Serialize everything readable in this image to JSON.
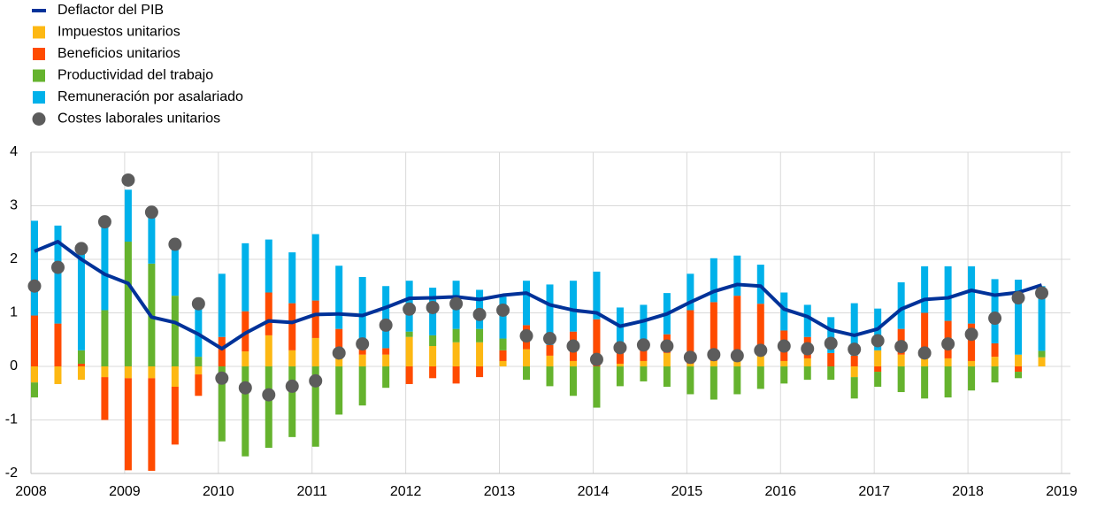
{
  "chart_data": {
    "type": "bar",
    "x": [
      2008,
      2008.25,
      2008.5,
      2008.75,
      2009,
      2009.25,
      2009.5,
      2009.75,
      2010,
      2010.25,
      2010.5,
      2010.75,
      2011,
      2011.25,
      2011.5,
      2011.75,
      2012,
      2012.25,
      2012.5,
      2012.75,
      2013,
      2013.25,
      2013.5,
      2013.75,
      2014,
      2014.25,
      2014.5,
      2014.75,
      2015,
      2015.25,
      2015.5,
      2015.75,
      2016,
      2016.25,
      2016.5,
      2016.75,
      2017,
      2017.25,
      2017.5,
      2017.75,
      2018,
      2018.25,
      2018.5,
      2018.75
    ],
    "series": [
      {
        "name": "Deflactor del PIB",
        "type": "line",
        "color": "#003299",
        "values": [
          2.15,
          2.33,
          2.0,
          1.72,
          1.55,
          0.92,
          0.82,
          0.6,
          0.33,
          0.62,
          0.85,
          0.82,
          0.97,
          0.98,
          0.95,
          1.1,
          1.27,
          1.28,
          1.3,
          1.25,
          1.33,
          1.37,
          1.15,
          1.05,
          1.0,
          0.75,
          0.85,
          0.98,
          1.2,
          1.4,
          1.53,
          1.5,
          1.07,
          0.93,
          0.68,
          0.58,
          0.7,
          1.07,
          1.25,
          1.28,
          1.42,
          1.33,
          1.38,
          1.52
        ]
      },
      {
        "name": "Impuestos unitarios",
        "type": "bar",
        "color": "#fdb813",
        "values": [
          -0.3,
          -0.33,
          -0.25,
          -0.2,
          -0.22,
          -0.22,
          -0.38,
          -0.15,
          0,
          0.28,
          0.58,
          0.3,
          0.53,
          0.15,
          0.22,
          0.22,
          0.55,
          0.38,
          0.45,
          0.45,
          0.1,
          0.32,
          0.2,
          0.1,
          0,
          0.05,
          0.1,
          0.25,
          0.05,
          0.1,
          0.12,
          0.2,
          0.1,
          0.15,
          0,
          -0.2,
          0.3,
          0.22,
          0.15,
          0.15,
          0.1,
          0.18,
          0.22,
          0.17
        ]
      },
      {
        "name": "Beneficios unitarios",
        "type": "bar",
        "color": "#ff4b00",
        "values": [
          0.95,
          0.8,
          0.05,
          -0.8,
          -1.72,
          -1.73,
          -1.08,
          -0.4,
          0.55,
          0.75,
          0.8,
          0.88,
          0.7,
          0.55,
          0.1,
          0.12,
          -0.33,
          -0.22,
          -0.32,
          -0.2,
          0.2,
          0.45,
          0.2,
          0.55,
          0.88,
          0.23,
          0.2,
          0.35,
          1.0,
          1.1,
          1.2,
          0.97,
          0.57,
          0.4,
          0.25,
          0.2,
          -0.1,
          0.48,
          0.85,
          0.7,
          0.7,
          0.25,
          -0.1,
          0
        ]
      },
      {
        "name": "Productividad del trabajo",
        "type": "bar",
        "color": "#65b32e",
        "values": [
          -0.28,
          0,
          0.25,
          1.05,
          2.33,
          1.92,
          1.32,
          0.18,
          -1.4,
          -1.68,
          -1.52,
          -1.32,
          -1.5,
          -0.9,
          -0.73,
          -0.4,
          0.1,
          0.2,
          0.25,
          0.25,
          0.22,
          -0.25,
          -0.37,
          -0.55,
          -0.77,
          -0.37,
          -0.28,
          -0.38,
          -0.52,
          -0.62,
          -0.52,
          -0.42,
          -0.32,
          -0.25,
          -0.25,
          -0.4,
          -0.28,
          -0.48,
          -0.6,
          -0.58,
          -0.45,
          -0.3,
          -0.12,
          0.12
        ]
      },
      {
        "name": "Remuneración por asalariado",
        "type": "bar",
        "color": "#00b1ea",
        "values": [
          1.77,
          1.83,
          1.8,
          1.55,
          0.97,
          0.93,
          0.93,
          0.97,
          1.18,
          1.27,
          0.99,
          0.95,
          1.24,
          1.18,
          1.35,
          1.16,
          0.95,
          0.89,
          0.9,
          0.73,
          0.78,
          0.83,
          1.13,
          0.95,
          0.89,
          0.82,
          0.85,
          0.77,
          0.68,
          0.82,
          0.75,
          0.73,
          0.71,
          0.6,
          0.67,
          0.98,
          0.78,
          0.87,
          0.87,
          1.02,
          1.07,
          1.2,
          1.4,
          1.21
        ]
      },
      {
        "name": "Costes laborales unitarios",
        "type": "scatter",
        "color": "#5c5c5c",
        "values": [
          1.5,
          1.85,
          2.2,
          2.7,
          3.48,
          2.88,
          2.28,
          1.17,
          -0.22,
          -0.4,
          -0.53,
          -0.37,
          -0.27,
          0.25,
          0.42,
          0.77,
          1.07,
          1.1,
          1.17,
          0.97,
          1.05,
          0.57,
          0.52,
          0.38,
          0.13,
          0.35,
          0.4,
          0.38,
          0.17,
          0.22,
          0.2,
          0.3,
          0.38,
          0.33,
          0.43,
          0.32,
          0.48,
          0.37,
          0.25,
          0.42,
          0.6,
          0.9,
          1.28,
          1.37
        ]
      }
    ],
    "xlim": [
      2008,
      2019
    ],
    "xticks": [
      2008,
      2009,
      2010,
      2011,
      2012,
      2013,
      2014,
      2015,
      2016,
      2017,
      2018,
      2019
    ],
    "ylim": [
      -2,
      4
    ],
    "yticks": [
      -2,
      -1,
      0,
      1,
      2,
      3,
      4
    ],
    "grid": true
  }
}
